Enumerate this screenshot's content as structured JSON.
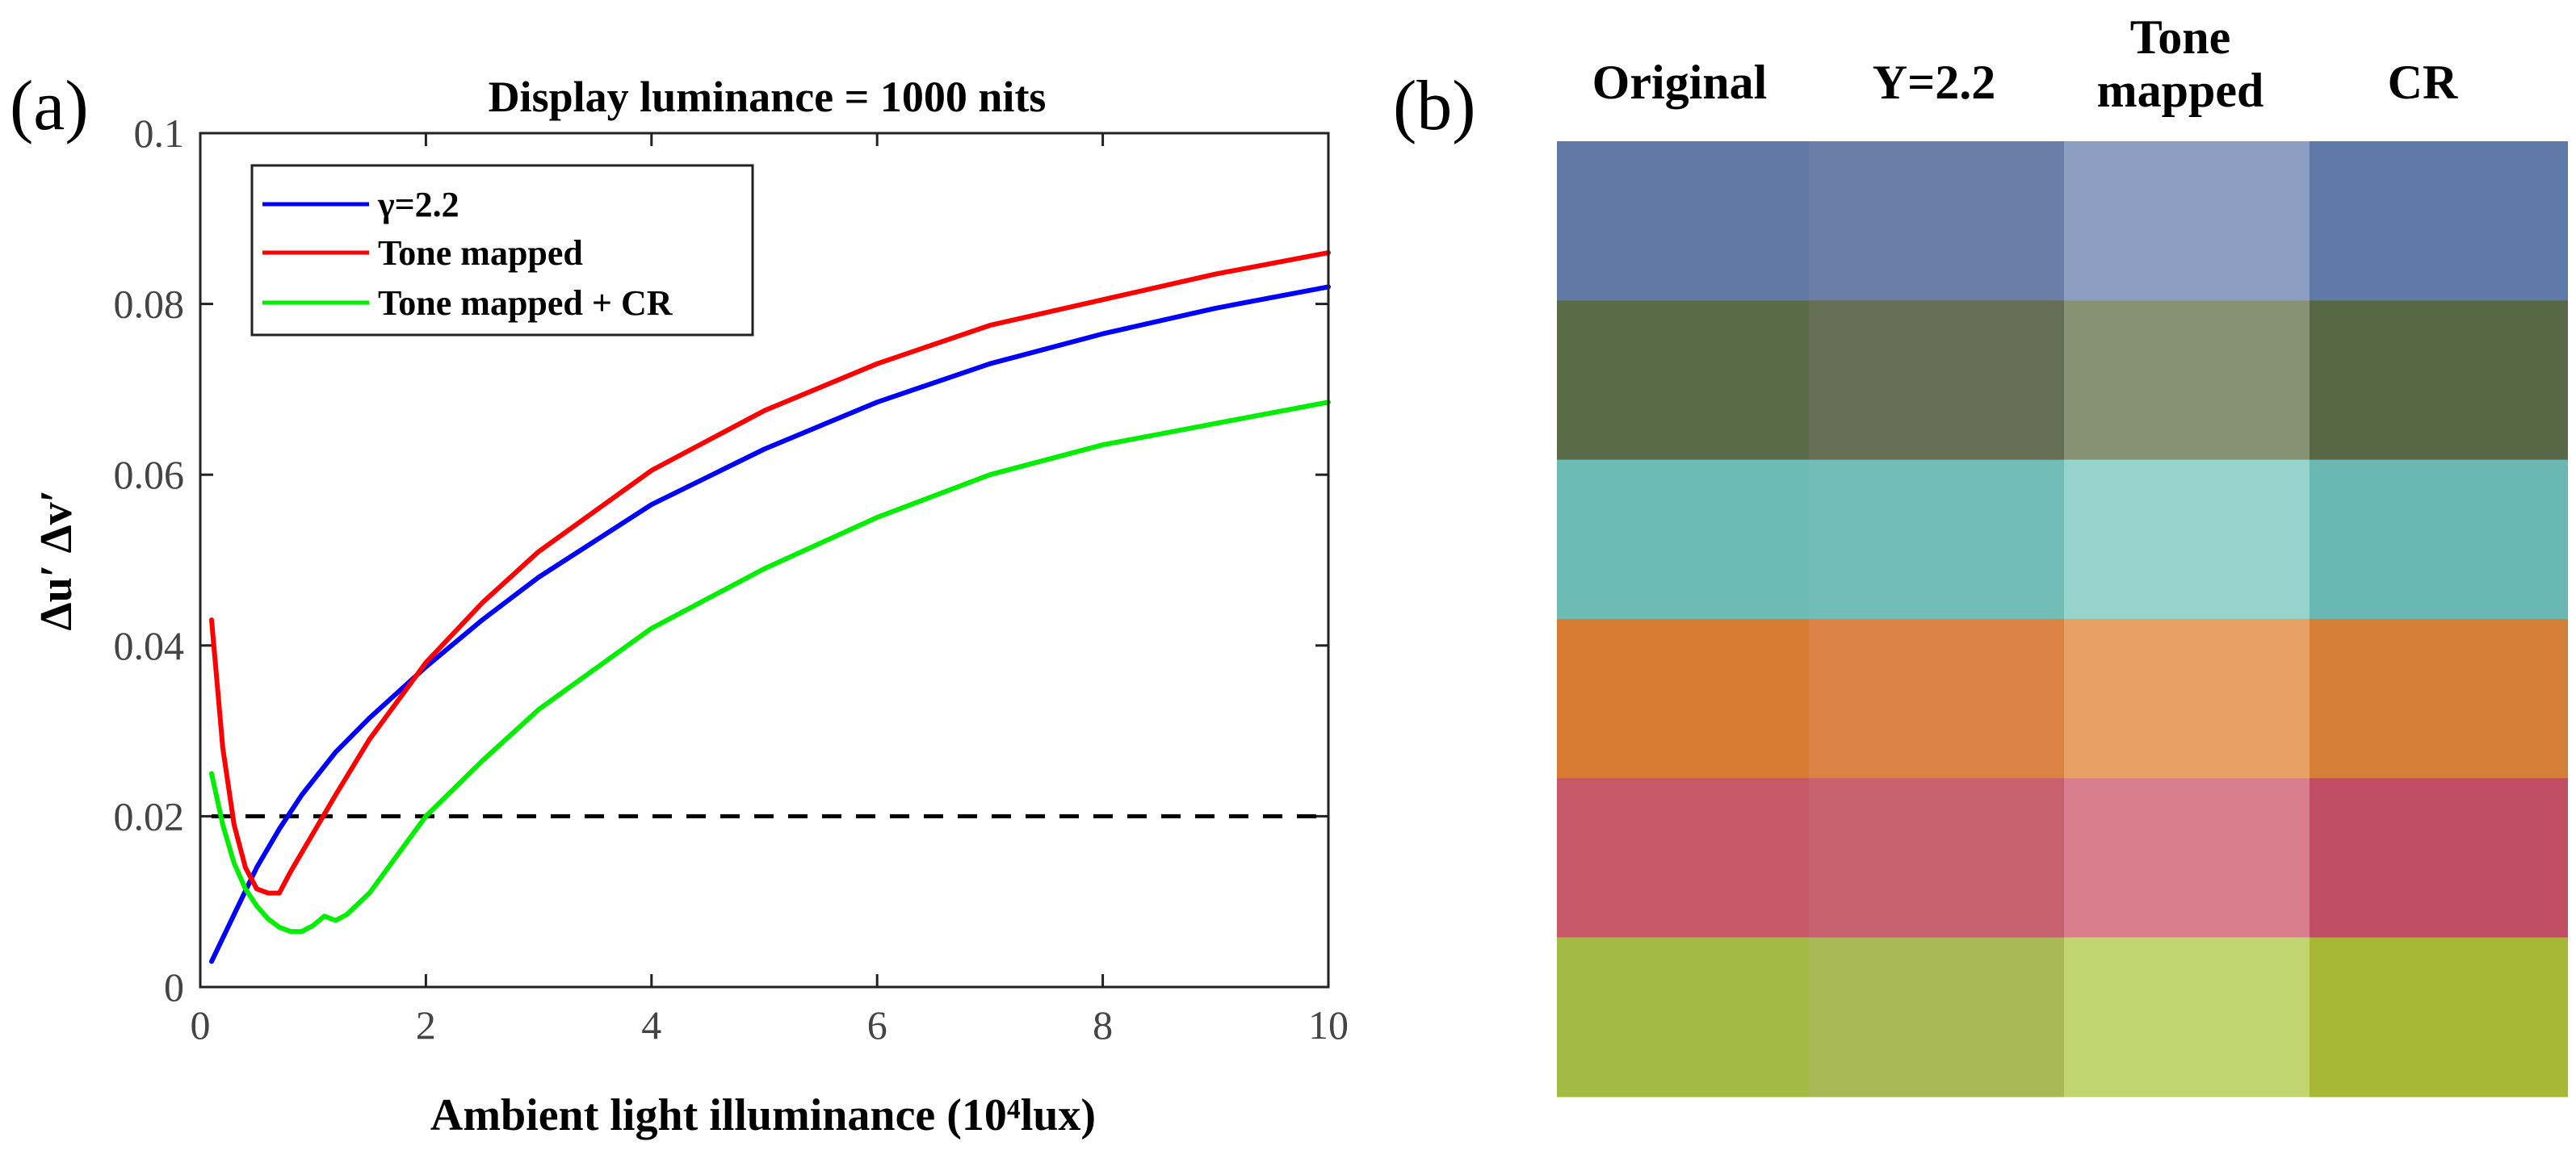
{
  "panel_a_label": "(a)",
  "panel_b_label": "(b)",
  "chart_data": {
    "type": "line",
    "title": "Display luminance = 1000 nits",
    "xlabel": "Ambient light illuminance (10⁴lux)",
    "ylabel": "Δu′ Δv′",
    "xlim": [
      0,
      10
    ],
    "ylim": [
      0,
      0.1
    ],
    "xticks": [
      "0",
      "2",
      "4",
      "6",
      "8",
      "10"
    ],
    "yticks": [
      "0",
      "0.02",
      "0.04",
      "0.06",
      "0.08",
      "0.1"
    ],
    "grid": false,
    "legend_position": "top-left",
    "reference_line": {
      "y": 0.02,
      "style": "dashed",
      "color": "#000000"
    },
    "series": [
      {
        "name": "γ=2.2",
        "color": "#0000ff",
        "x": [
          0.1,
          0.3,
          0.5,
          0.7,
          0.9,
          1.2,
          1.5,
          2,
          2.5,
          3,
          4,
          5,
          6,
          7,
          8,
          9,
          10
        ],
        "y": [
          0.003,
          0.0085,
          0.014,
          0.0185,
          0.0225,
          0.0275,
          0.0315,
          0.0375,
          0.043,
          0.048,
          0.0565,
          0.063,
          0.0685,
          0.073,
          0.0765,
          0.0795,
          0.082
        ]
      },
      {
        "name": "Tone mapped",
        "color": "#ff0000",
        "x": [
          0.1,
          0.2,
          0.3,
          0.4,
          0.5,
          0.6,
          0.7,
          0.8,
          1.0,
          1.2,
          1.5,
          2,
          2.5,
          3,
          4,
          5,
          6,
          7,
          8,
          9,
          10
        ],
        "y": [
          0.043,
          0.028,
          0.019,
          0.014,
          0.0115,
          0.011,
          0.011,
          0.0135,
          0.018,
          0.0225,
          0.029,
          0.038,
          0.045,
          0.051,
          0.0605,
          0.0675,
          0.073,
          0.0775,
          0.0805,
          0.0835,
          0.086
        ]
      },
      {
        "name": "Tone mapped + CR",
        "color": "#00ee00",
        "x": [
          0.1,
          0.2,
          0.3,
          0.4,
          0.5,
          0.6,
          0.7,
          0.8,
          0.9,
          1.0,
          1.1,
          1.2,
          1.3,
          1.5,
          2,
          2.5,
          3,
          4,
          5,
          6,
          7,
          8,
          9,
          10
        ],
        "y": [
          0.025,
          0.019,
          0.0145,
          0.0115,
          0.0095,
          0.008,
          0.007,
          0.0065,
          0.0065,
          0.0072,
          0.0083,
          0.0078,
          0.0085,
          0.011,
          0.02,
          0.0265,
          0.0325,
          0.042,
          0.049,
          0.055,
          0.06,
          0.0635,
          0.066,
          0.0685
        ]
      }
    ]
  },
  "swatch_grid": {
    "columns": [
      "Original",
      "Υ=2.2",
      "Tone mapped",
      "CR"
    ],
    "rows": [
      {
        "name": "blue",
        "colors": [
          "#6278a5",
          "#6a7ea8",
          "#8c9fc2",
          "#5f7aa6"
        ]
      },
      {
        "name": "olive",
        "colors": [
          "#5a6b47",
          "#666f53",
          "#879275",
          "#586847"
        ]
      },
      {
        "name": "teal",
        "colors": [
          "#6cbcb5",
          "#73bdb7",
          "#95d3cc",
          "#6ab8b3"
        ]
      },
      {
        "name": "orange",
        "colors": [
          "#d87c33",
          "#db8245",
          "#e6a163",
          "#d37f36"
        ]
      },
      {
        "name": "red",
        "colors": [
          "#c65867",
          "#c9606d",
          "#d97e8d",
          "#c04d64"
        ]
      },
      {
        "name": "green",
        "colors": [
          "#a3ba43",
          "#a8b955",
          "#c1d46f",
          "#a6b835"
        ]
      }
    ]
  }
}
